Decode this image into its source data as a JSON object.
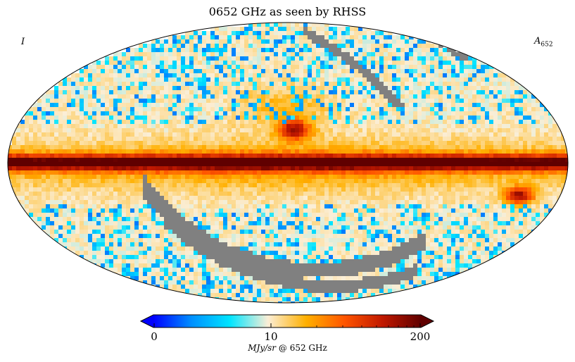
{
  "chart_data": {
    "type": "heatmap",
    "projection": "mollweide",
    "title": "0652 GHz as seen by RHSS",
    "stokes_label": "I",
    "map_label": "A",
    "map_label_sub": "652",
    "colormap": {
      "stops": [
        "#0000ff",
        "#0090ff",
        "#00e5ff",
        "#fbeed6",
        "#ffb000",
        "#ff5500",
        "#c01800",
        "#600000"
      ],
      "bad_color": "#808080",
      "over_under": "extend-both"
    },
    "colorbar": {
      "min": 0,
      "max": 200,
      "scale": "symmetric-log",
      "tick_labels": [
        "0",
        "10",
        "200"
      ],
      "tick_values": [
        0,
        10,
        200
      ],
      "unit_label": "MJy/sr",
      "unit_suffix": "@ 652 GHz"
    }
  },
  "colors": {
    "background": "#ffffff",
    "outline": "#000000"
  }
}
